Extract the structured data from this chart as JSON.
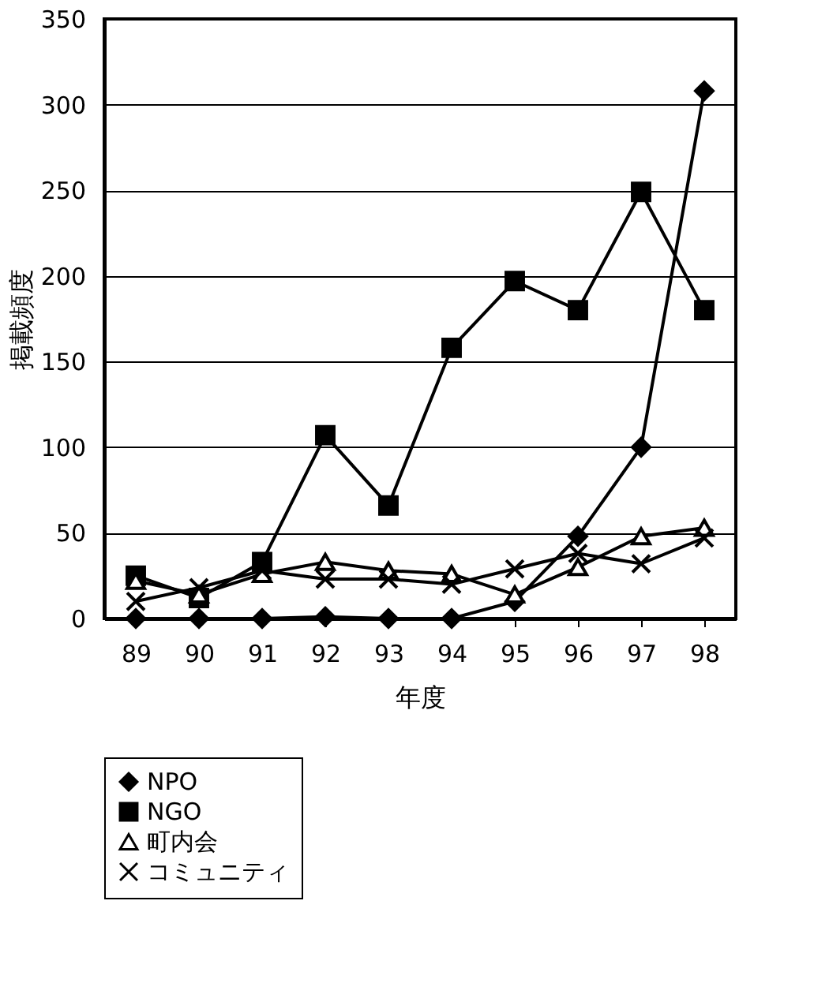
{
  "chart_data": {
    "type": "line",
    "xlabel": "年度",
    "ylabel": "掲載頻度",
    "categories": [
      "89",
      "90",
      "91",
      "92",
      "93",
      "94",
      "95",
      "96",
      "97",
      "98"
    ],
    "series": [
      {
        "name": "NPO",
        "color": "#000000",
        "marker": "diamond",
        "values": [
          0,
          0,
          0,
          1,
          0,
          0,
          10,
          48,
          100,
          308
        ]
      },
      {
        "name": "NGO",
        "color": "#000000",
        "marker": "square",
        "values": [
          25,
          12,
          33,
          107,
          66,
          158,
          197,
          180,
          249,
          180
        ]
      },
      {
        "name": "町内会",
        "color": "#000000",
        "marker": "triangle",
        "values": [
          22,
          14,
          26,
          33,
          28,
          26,
          14,
          30,
          48,
          53
        ]
      },
      {
        "name": "コミュニティ",
        "color": "#000000",
        "marker": "cross",
        "values": [
          10,
          18,
          28,
          23,
          23,
          20,
          29,
          38,
          32,
          47
        ]
      }
    ],
    "ylim": [
      0,
      350
    ],
    "yticks": [
      0,
      50,
      100,
      150,
      200,
      250,
      300,
      350
    ],
    "grid": "y",
    "legend": "bottom",
    "line_style": "solid"
  }
}
